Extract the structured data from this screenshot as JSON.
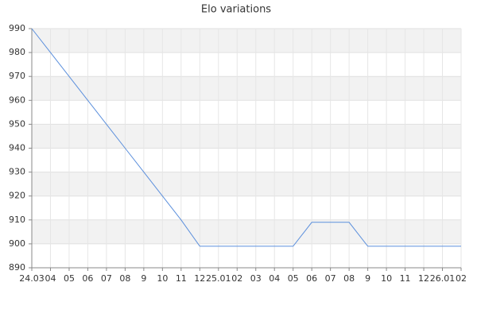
{
  "chart_data": {
    "type": "line",
    "title": "Elo variations",
    "categories": [
      "24.03",
      "04",
      "05",
      "06",
      "07",
      "08",
      "9",
      "10",
      "11",
      "12",
      "25.01",
      "02",
      "03",
      "04",
      "05",
      "06",
      "07",
      "08",
      "9",
      "10",
      "11",
      "12",
      "26.01",
      "02"
    ],
    "values": [
      990,
      980,
      970,
      960,
      950,
      940,
      930,
      920,
      910,
      899,
      899,
      899,
      899,
      899,
      899,
      909,
      909,
      909,
      899,
      899,
      899,
      899,
      899,
      899
    ],
    "color": "#5b8fdc",
    "ylim": [
      890,
      990
    ],
    "yticks": [
      890,
      900,
      910,
      920,
      930,
      940,
      950,
      960,
      970,
      980,
      990
    ],
    "grid": true
  }
}
